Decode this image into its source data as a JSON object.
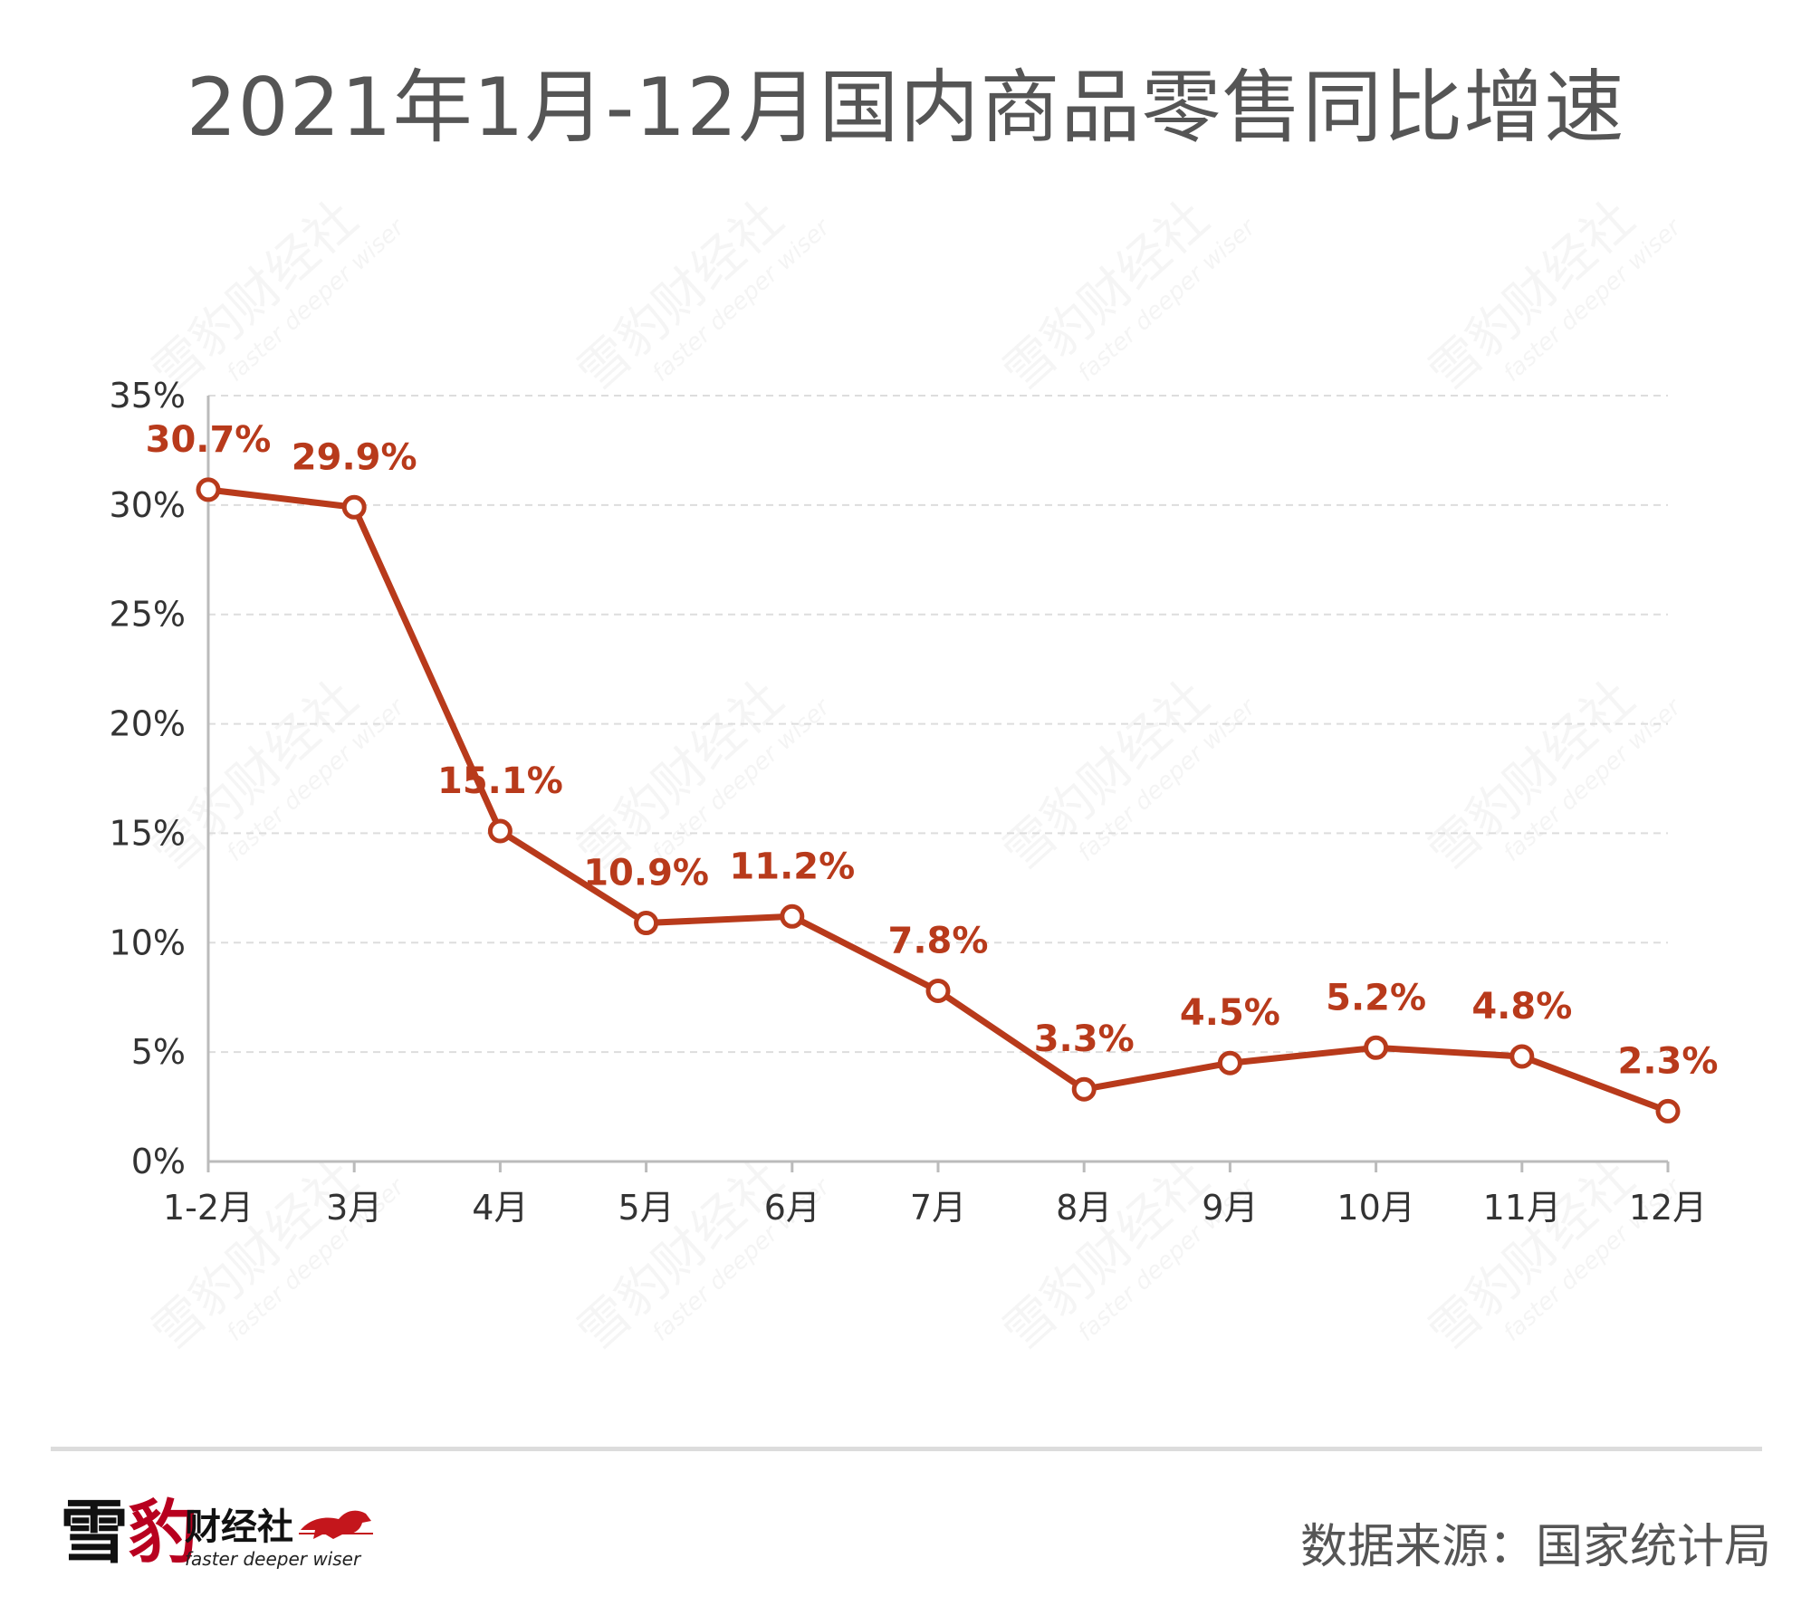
{
  "chart_data": {
    "type": "line",
    "title": "2021年1月-12月国内商品零售同比增速",
    "categories": [
      "1-2月",
      "3月",
      "4月",
      "5月",
      "6月",
      "7月",
      "8月",
      "9月",
      "10月",
      "11月",
      "12月"
    ],
    "values": [
      30.7,
      29.9,
      15.1,
      10.9,
      11.2,
      7.8,
      3.3,
      4.5,
      5.2,
      4.8,
      2.3
    ],
    "data_labels": [
      "30.7%",
      "29.9%",
      "15.1%",
      "10.9%",
      "11.2%",
      "7.8%",
      "3.3%",
      "4.5%",
      "5.2%",
      "4.8%",
      "2.3%"
    ],
    "y_ticks": [
      0,
      5,
      10,
      15,
      20,
      25,
      30,
      35
    ],
    "y_tick_labels": [
      "0%",
      "5%",
      "10%",
      "15%",
      "20%",
      "25%",
      "30%",
      "35%"
    ],
    "ylim": [
      0,
      35
    ],
    "xlabel": "",
    "ylabel": "",
    "grid": true,
    "legend": "none",
    "series_color": "#b83a1b"
  },
  "footer": {
    "logo_char1": "雪",
    "logo_char2": "豹",
    "logo_cn": "财经社",
    "logo_tagline": "faster deeper wiser",
    "source": "数据来源：国家统计局"
  },
  "colors": {
    "line": "#b83a1b",
    "grid": "#dddddd",
    "axis": "#bbbbbb",
    "title": "#555555"
  }
}
